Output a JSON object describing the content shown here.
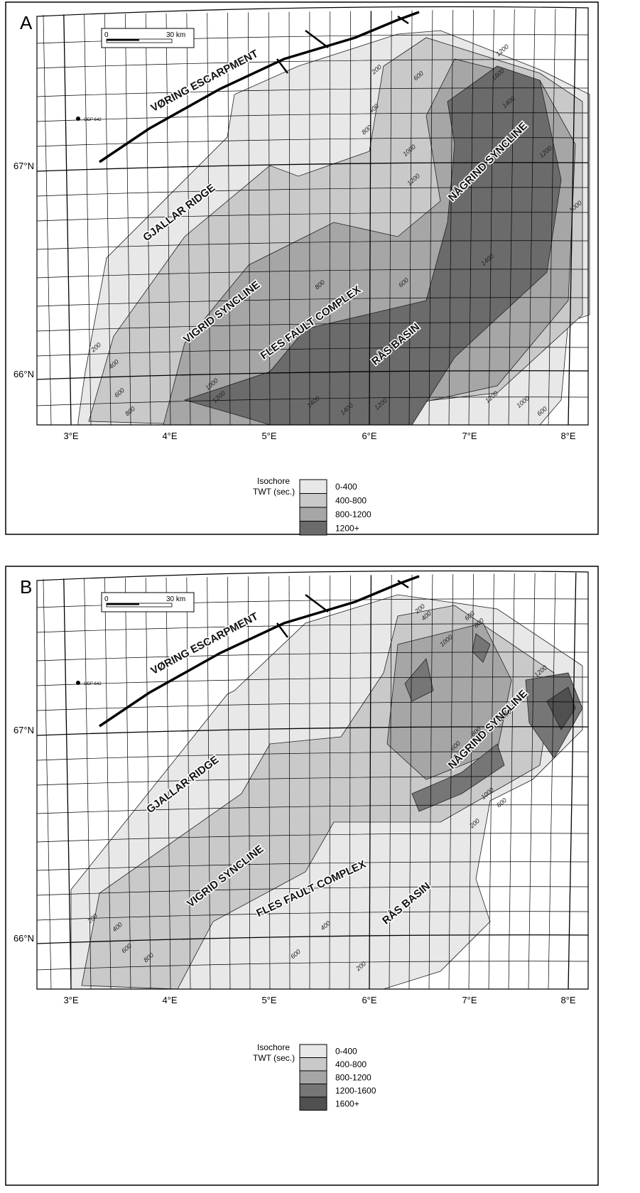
{
  "panels": [
    {
      "letter": "A",
      "scale_bar": {
        "start": "0",
        "end": "30 km"
      },
      "well": "ODP 642",
      "lon_labels": [
        "3°E",
        "4°E",
        "5°E",
        "6°E",
        "7°E",
        "8°E"
      ],
      "lat_labels": [
        "67°N",
        "66°N"
      ],
      "features": [
        "VØRING ESCARPMENT",
        "GJALLAR RIDGE",
        "VIGRID SYNCLINE",
        "FLES FAULT COMPLEX",
        "NÅGRIND SYNCLINE",
        "RÅS BASIN"
      ],
      "contour_labels": [
        "200",
        "400",
        "600",
        "800",
        "1000",
        "1200",
        "1200",
        "1600",
        "1400",
        "1200",
        "1000",
        "1400",
        "600",
        "800",
        "200",
        "400",
        "600",
        "800",
        "1000",
        "1200",
        "1400",
        "1400",
        "1200",
        "1200",
        "1000",
        "600"
      ],
      "legend": {
        "title": [
          "Isochore",
          "TWT (sec.)"
        ],
        "items": [
          {
            "label": "0-400",
            "color": "#e8e8e8"
          },
          {
            "label": "400-800",
            "color": "#c9c9c9"
          },
          {
            "label": "800-1200",
            "color": "#a6a6a6"
          },
          {
            "label": "1200+",
            "color": "#6b6b6b"
          }
        ]
      }
    },
    {
      "letter": "B",
      "scale_bar": {
        "start": "0",
        "end": "30 km"
      },
      "well": "ODP 642",
      "lon_labels": [
        "3°E",
        "4°E",
        "5°E",
        "6°E",
        "7°E",
        "8°E"
      ],
      "lat_labels": [
        "67°N",
        "66°N"
      ],
      "features": [
        "VØRING ESCARPMENT",
        "GJALLAR RIDGE",
        "VIGRID SYNCLINE",
        "FLES FAULT COMPLEX",
        "NÅGRIND SYNCLINE",
        "RÅS BASIN"
      ],
      "contour_labels": [
        "200",
        "400",
        "600",
        "800",
        "1000",
        "1200",
        "1000",
        "800",
        "600",
        "1000",
        "600",
        "200",
        "200",
        "400",
        "600",
        "800",
        "400",
        "600",
        "200"
      ],
      "legend": {
        "title": [
          "Isochore",
          "TWT (sec.)"
        ],
        "items": [
          {
            "label": "0-400",
            "color": "#e8e8e8"
          },
          {
            "label": "400-800",
            "color": "#c9c9c9"
          },
          {
            "label": "800-1200",
            "color": "#a6a6a6"
          },
          {
            "label": "1200-1600",
            "color": "#767676"
          },
          {
            "label": "1600+",
            "color": "#505050"
          }
        ]
      }
    }
  ]
}
